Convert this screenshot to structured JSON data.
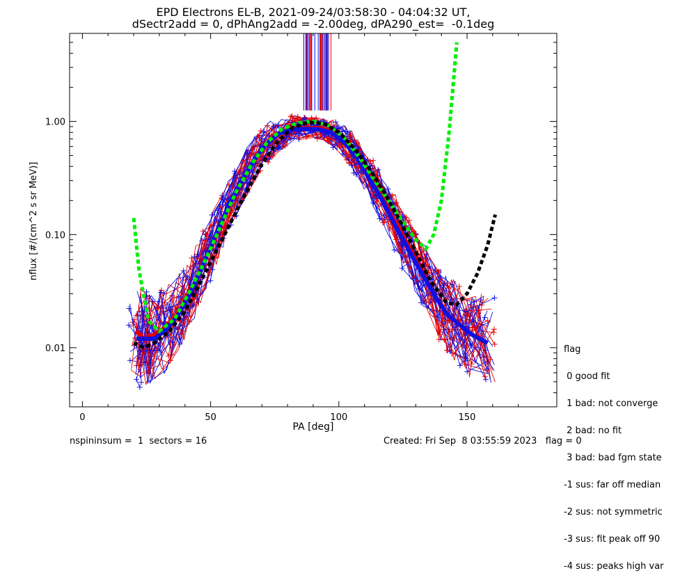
{
  "title_line1": "EPD Electrons EL-B, 2021-09-24/03:58:30 - 04:04:32 UT,",
  "title_line2": "dSectr2add = 0, dPhAng2add = -2.00deg, dPA290_est=  -0.1deg",
  "legend": {
    "heading": "flag",
    "items": [
      " 0 good fit",
      " 1 bad: not converge",
      " 2 bad: no fit",
      " 3 bad: bad fgm state",
      "-1 sus: far off median",
      "-2 sus: not symmetric",
      "-3 sus: fit peak off 90",
      "-4 sus: peaks high var"
    ]
  },
  "footer": {
    "left": "nspininsum =  1  sectors = 16",
    "right": "Created: Fri Sep  8 03:55:59 2023   flag = 0"
  },
  "colors": {
    "series_red": "#e60000",
    "series_blue": "#1010e0",
    "fit_green": "#00ee00",
    "fit_black": "#000000"
  },
  "chart_data": {
    "type": "line",
    "xlabel": "PA [deg]",
    "ylabel": "nflux [#/(cm^2 s sr MeV)]",
    "xlim": [
      -5,
      185
    ],
    "ylim": [
      0.003,
      6.0
    ],
    "yscale": "log",
    "xticks": [
      0,
      50,
      100,
      150
    ],
    "yticks": [
      {
        "value": 0.01,
        "label": "0.01"
      },
      {
        "value": 0.1,
        "label": "0.10"
      },
      {
        "value": 1.0,
        "label": "1.00"
      }
    ],
    "grid": false,
    "series": [
      {
        "color": "red",
        "x": [
          21,
          24,
          28,
          32,
          37,
          42,
          47,
          52,
          57,
          62,
          67,
          72,
          77,
          82,
          87,
          92,
          97,
          102,
          107,
          112,
          117,
          122,
          127,
          132,
          137,
          142,
          147,
          152,
          158
        ],
        "y": [
          0.014,
          0.012,
          0.013,
          0.015,
          0.02,
          0.03,
          0.055,
          0.1,
          0.18,
          0.3,
          0.46,
          0.64,
          0.8,
          0.86,
          0.88,
          0.87,
          0.82,
          0.68,
          0.5,
          0.33,
          0.21,
          0.13,
          0.08,
          0.05,
          0.03,
          0.02,
          0.016,
          0.013,
          0.011
        ]
      },
      {
        "color": "blue",
        "x": [
          21,
          24,
          28,
          32,
          37,
          42,
          47,
          52,
          57,
          62,
          67,
          72,
          77,
          82,
          87,
          92,
          97,
          102,
          107,
          112,
          117,
          122,
          127,
          132,
          137,
          142,
          147,
          152,
          158
        ],
        "y": [
          0.012,
          0.012,
          0.012,
          0.014,
          0.019,
          0.03,
          0.054,
          0.1,
          0.18,
          0.3,
          0.46,
          0.64,
          0.79,
          0.85,
          0.86,
          0.85,
          0.8,
          0.66,
          0.48,
          0.31,
          0.2,
          0.12,
          0.075,
          0.047,
          0.03,
          0.02,
          0.016,
          0.013,
          0.011
        ]
      }
    ],
    "fits": [
      {
        "color": "green",
        "x": [
          20,
          22,
          24,
          26,
          30,
          36,
          42,
          48,
          54,
          60,
          66,
          72,
          78,
          84,
          90,
          96,
          102,
          108,
          114,
          120,
          126,
          130,
          134,
          137,
          140,
          143,
          146
        ],
        "y": [
          0.14,
          0.05,
          0.028,
          0.017,
          0.014,
          0.018,
          0.032,
          0.06,
          0.12,
          0.24,
          0.42,
          0.65,
          0.86,
          0.97,
          1.0,
          0.92,
          0.72,
          0.48,
          0.3,
          0.19,
          0.12,
          0.09,
          0.075,
          0.1,
          0.2,
          0.8,
          5.0
        ]
      },
      {
        "color": "black",
        "x": [
          20,
          24,
          28,
          34,
          40,
          46,
          52,
          58,
          64,
          70,
          76,
          82,
          88,
          94,
          100,
          106,
          112,
          118,
          124,
          130,
          136,
          142,
          146,
          150,
          154,
          158,
          161
        ],
        "y": [
          0.011,
          0.01,
          0.011,
          0.014,
          0.021,
          0.038,
          0.07,
          0.13,
          0.24,
          0.42,
          0.66,
          0.88,
          0.98,
          0.96,
          0.8,
          0.58,
          0.38,
          0.23,
          0.13,
          0.07,
          0.038,
          0.025,
          0.024,
          0.03,
          0.045,
          0.08,
          0.15
        ]
      }
    ]
  }
}
